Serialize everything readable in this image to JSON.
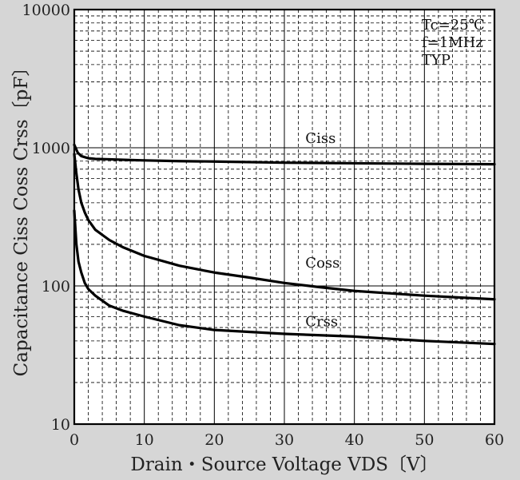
{
  "chart_data": {
    "type": "line",
    "xlabel": "Drain・Source Voltage VDS〔V〕",
    "ylabel": "Capacitance  Ciss Coss Crss〔pF〕",
    "xlim": [
      0,
      60
    ],
    "ylim": [
      10,
      10000
    ],
    "y_scale": "log",
    "grid": true,
    "x_ticks": [
      "0",
      "10",
      "20",
      "30",
      "40",
      "50",
      "60"
    ],
    "y_ticks": [
      "10",
      "100",
      "1000",
      "10000"
    ],
    "annotations": [
      "Tc=25℃",
      "f=1MHz",
      "TYP"
    ],
    "series": [
      {
        "name": "Ciss",
        "x": [
          0,
          0.5,
          1,
          2,
          3,
          5,
          8,
          10,
          15,
          20,
          30,
          40,
          50,
          60
        ],
        "y": [
          1050,
          920,
          870,
          840,
          830,
          825,
          815,
          810,
          800,
          795,
          780,
          772,
          765,
          760
        ]
      },
      {
        "name": "Coss",
        "x": [
          0,
          0.3,
          0.6,
          1,
          1.5,
          2,
          3,
          5,
          7,
          10,
          15,
          20,
          25,
          30,
          35,
          40,
          50,
          60
        ],
        "y": [
          900,
          650,
          500,
          400,
          340,
          300,
          255,
          215,
          190,
          165,
          140,
          125,
          115,
          105,
          98,
          92,
          85,
          80
        ]
      },
      {
        "name": "Crss",
        "x": [
          0,
          0.3,
          0.6,
          1,
          1.5,
          2,
          3,
          5,
          7,
          10,
          15,
          20,
          30,
          40,
          50,
          60
        ],
        "y": [
          350,
          200,
          150,
          125,
          105,
          95,
          85,
          72,
          66,
          60,
          52,
          48,
          45,
          43,
          40,
          38
        ]
      }
    ]
  }
}
